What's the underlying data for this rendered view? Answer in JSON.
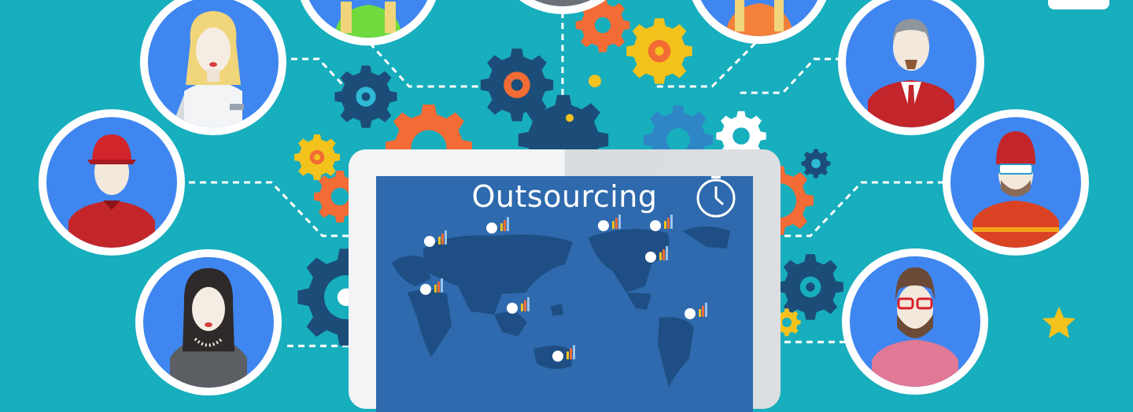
{
  "illustration": {
    "screen_title": "Outsourcing",
    "colors": {
      "background": "#17aebd",
      "avatar_ring": "#ffffff",
      "avatar_fill": "#3f86f0",
      "map_screen": "#2e6aad",
      "map_land": "#1f4e84",
      "gear_orange": "#f36b35",
      "gear_yellow": "#f4c21c",
      "gear_navy": "#1c4d78",
      "gear_blue": "#2f86c7",
      "star": "#f4c21c"
    },
    "icons": [
      "gear-icon",
      "clock-icon",
      "star-icon",
      "location-marker-icon",
      "bar-chart-icon",
      "world-map"
    ]
  }
}
